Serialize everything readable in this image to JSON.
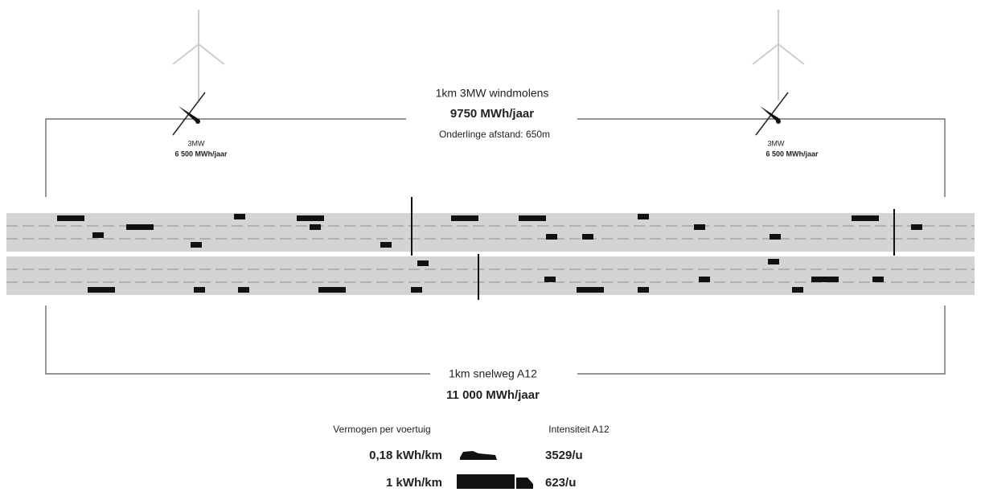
{
  "header": {
    "title": "1km 3MW windmolens",
    "energy": "9750 MWh/jaar",
    "distance": "Onderlinge afstand: 650m"
  },
  "turbines": [
    {
      "power": "3MW",
      "energy": "6 500 MWh/jaar"
    },
    {
      "power": "3MW",
      "energy": "6 500 MWh/jaar"
    }
  ],
  "highway": {
    "title": "1km snelweg A12",
    "energy": "11 000 MWh/jaar"
  },
  "legend": {
    "left_header": "Vermogen per voertuig",
    "right_header": "Intensiteit A12",
    "rows": [
      {
        "consumption": "0,18 kWh/km",
        "intensity": "3529/u"
      },
      {
        "consumption": "1 kWh/km",
        "intensity": "623/u"
      }
    ]
  }
}
